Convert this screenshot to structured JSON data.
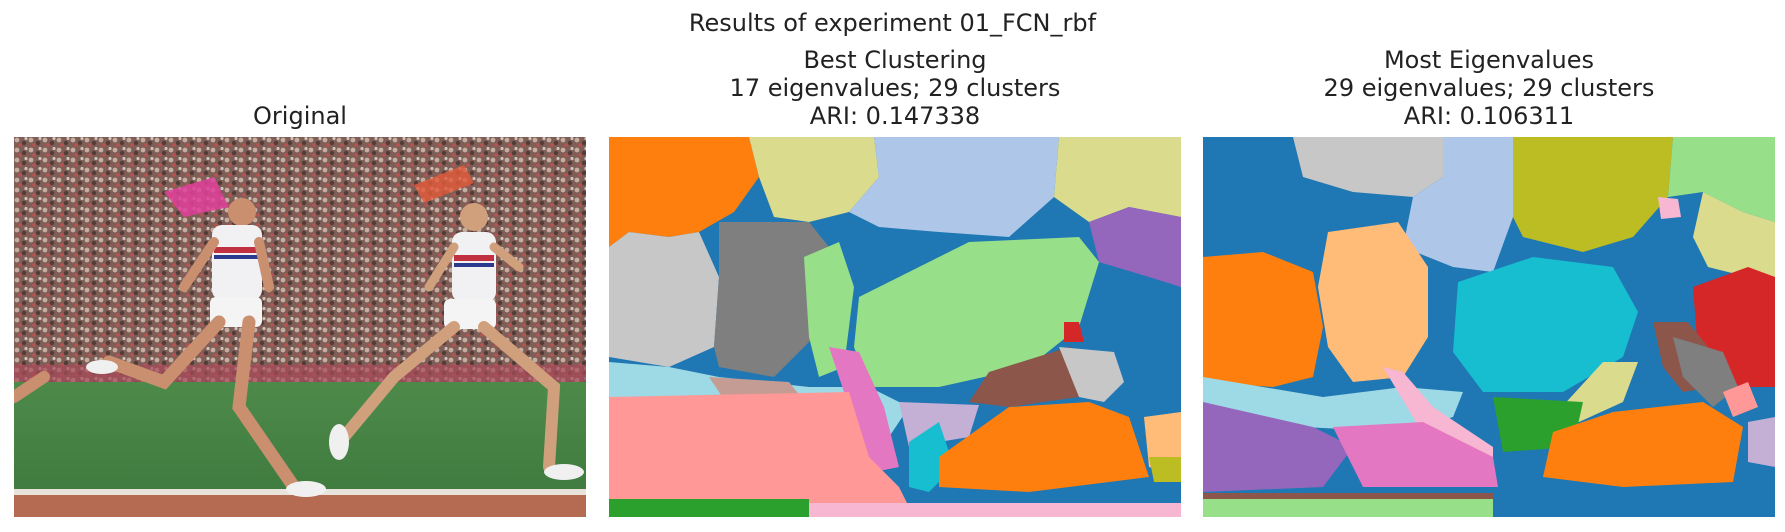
{
  "figure": {
    "suptitle": "Results of experiment 01_FCN_rbf",
    "panels": [
      {
        "id": "original",
        "title_lines": [
          "Original"
        ],
        "image": "photo of three runners on a stadium track with a crowd in the background"
      },
      {
        "id": "best-clustering",
        "title_lines": [
          "Best Clustering",
          "17 eigenvalues; 29 clusters",
          "ARI: 0.147338"
        ],
        "image": "segmentation map colored by cluster"
      },
      {
        "id": "most-eigenvalues",
        "title_lines": [
          "Most Eigenvalues",
          "29 eigenvalues; 29 clusters",
          "ARI: 0.106311"
        ],
        "image": "segmentation map colored by cluster"
      }
    ]
  },
  "palette": {
    "blue": "#1f77b4",
    "orange": "#ff7f0e",
    "green": "#2ca02c",
    "red": "#d62728",
    "purple": "#9467bd",
    "brown": "#8c564b",
    "pink": "#e377c2",
    "gray": "#7f7f7f",
    "olive": "#bcbd22",
    "cyan": "#17becf",
    "light_blue": "#aec7e8",
    "light_orange": "#ffbb78",
    "light_green": "#98df8a",
    "light_red": "#ff9896",
    "light_pink": "#f7b6d2",
    "light_gray": "#c7c7c7",
    "light_olive": "#dbdb8d",
    "light_cyan": "#9edae5",
    "light_brown": "#c49c94"
  }
}
